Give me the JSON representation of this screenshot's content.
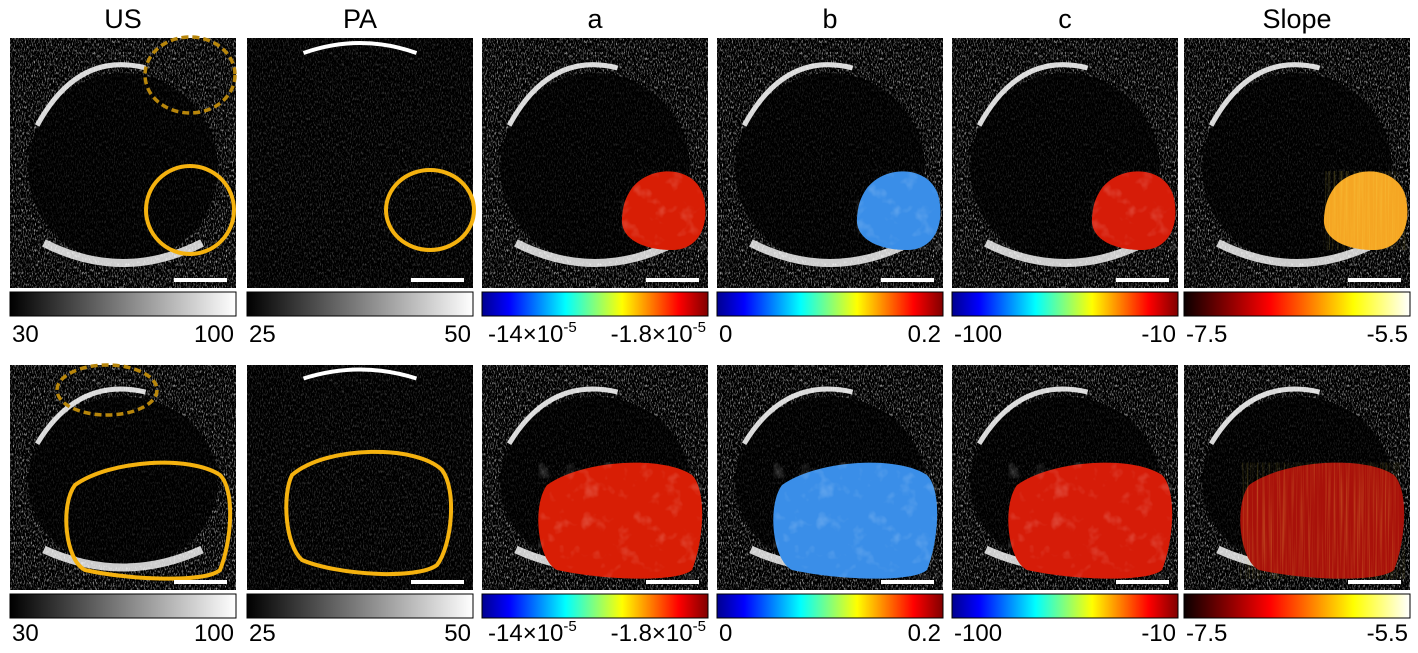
{
  "columns": [
    {
      "title": "US",
      "colormap": "gray"
    },
    {
      "title": "PA",
      "colormap": "gray"
    },
    {
      "title": "a",
      "colormap": "jet"
    },
    {
      "title": "b",
      "colormap": "jet"
    },
    {
      "title": "c",
      "colormap": "jet"
    },
    {
      "title": "Slope",
      "colormap": "hot"
    }
  ],
  "rows": [
    {
      "labels": [
        [
          "30",
          "100"
        ],
        [
          "25",
          "50"
        ],
        [
          {
            "base": "-14×10",
            "exp": "-5"
          },
          {
            "base": "-1.8×10",
            "exp": "-5"
          }
        ],
        [
          "0",
          "0.2"
        ],
        [
          "-100",
          "-10"
        ],
        [
          "-7.5",
          "-5.5"
        ]
      ]
    },
    {
      "labels": [
        [
          "30",
          "100"
        ],
        [
          "25",
          "50"
        ],
        [
          {
            "base": "-14×10",
            "exp": "-5"
          },
          {
            "base": "-1.8×10",
            "exp": "-5"
          }
        ],
        [
          "0",
          "0.2"
        ],
        [
          "-100",
          "-10"
        ],
        [
          "-7.5",
          "-5.5"
        ]
      ]
    }
  ]
}
